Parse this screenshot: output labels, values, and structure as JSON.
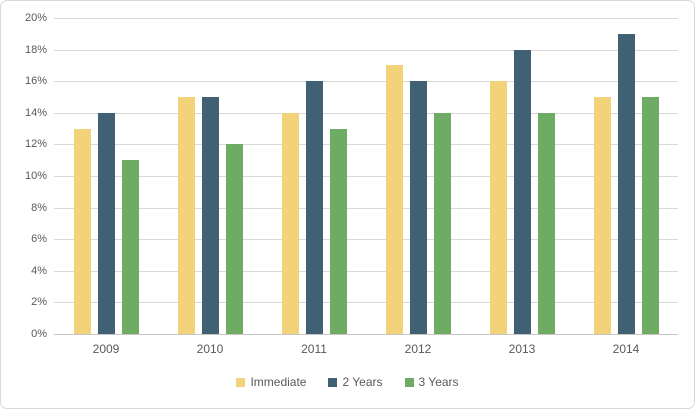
{
  "chart_data": {
    "type": "bar",
    "title": "",
    "categories": [
      "2009",
      "2010",
      "2011",
      "2012",
      "2013",
      "2014"
    ],
    "series": [
      {
        "name": "Immediate",
        "color": "#F2D37A",
        "values": [
          13,
          15,
          14,
          17,
          16,
          15
        ]
      },
      {
        "name": "2 Years",
        "color": "#3F6173",
        "values": [
          14,
          15,
          16,
          16,
          18,
          19
        ]
      },
      {
        "name": "3 Years",
        "color": "#6EAC64",
        "values": [
          11,
          12,
          13,
          14,
          14,
          15
        ]
      }
    ],
    "xlabel": "",
    "ylabel": "",
    "ylim": [
      0,
      20
    ],
    "ytick_step": 2,
    "ytick_suffix": "%",
    "ytick_labels": [
      "0%",
      "2%",
      "4%",
      "6%",
      "8%",
      "10%",
      "12%",
      "14%",
      "16%",
      "18%",
      "20%"
    ],
    "grid": true,
    "legend_position": "bottom",
    "colors": {
      "axis_text": "#595959",
      "gridline": "#D9D9D9",
      "axis_line": "#C6C6C6",
      "frame_border": "#D9D9D9",
      "background": "#FFFFFF"
    }
  }
}
